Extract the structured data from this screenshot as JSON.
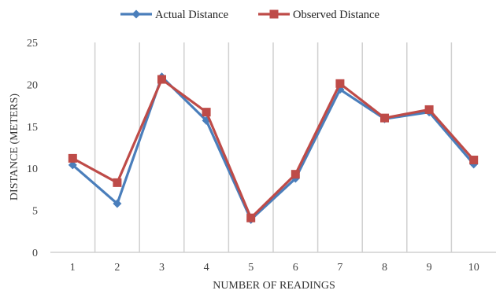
{
  "chart_data": {
    "type": "line",
    "title": "",
    "xlabel": "NUMBER OF READINGS",
    "ylabel": "DISTANCE (METERS)",
    "categories": [
      "1",
      "2",
      "3",
      "4",
      "5",
      "6",
      "7",
      "8",
      "9",
      "10"
    ],
    "ylim": [
      0,
      25
    ],
    "yticks": [
      "0",
      "5",
      "10",
      "15",
      "20",
      "25"
    ],
    "grid": "vertical",
    "legend_position": "top",
    "series": [
      {
        "name": "Actual Distance",
        "color": "#4a7ebb",
        "marker": "diamond",
        "values": [
          10.4,
          5.8,
          20.9,
          15.7,
          3.9,
          8.8,
          19.4,
          15.9,
          16.7,
          10.5
        ]
      },
      {
        "name": "Observed Distance",
        "color": "#be4b48",
        "marker": "square",
        "values": [
          11.2,
          8.3,
          20.6,
          16.7,
          4.1,
          9.3,
          20.1,
          16.0,
          17.0,
          11.0
        ]
      }
    ]
  }
}
